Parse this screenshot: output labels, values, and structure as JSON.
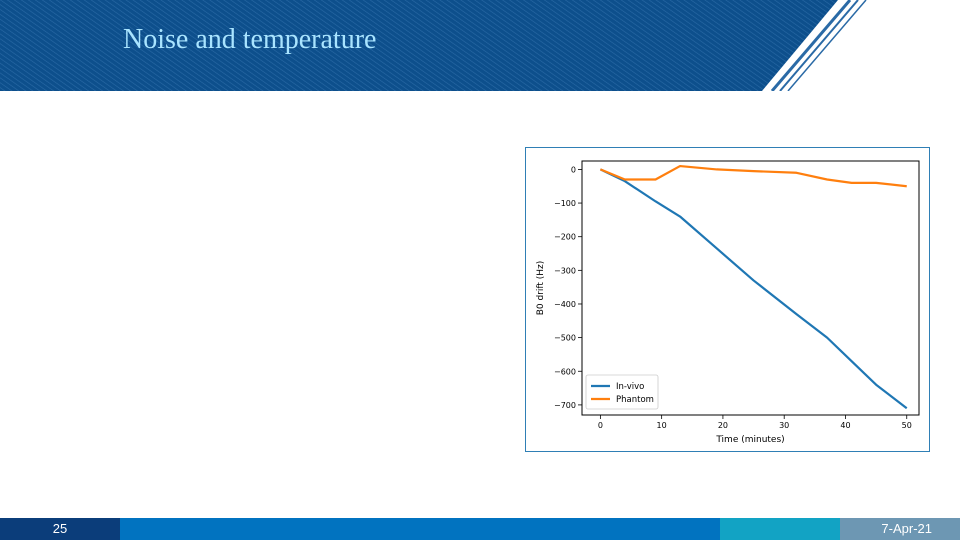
{
  "slide": {
    "title": "Noise and temperature",
    "page_number": "25",
    "date": "7-Apr-21"
  },
  "colors": {
    "header": "#0d4f8c",
    "title_text": "#a9e4ff",
    "footer_dark": "#0b3d7a",
    "footer_mid": "#0173c0",
    "footer_teal": "#12a3c4",
    "footer_gray": "#6d97b3"
  },
  "chart_data": {
    "type": "line",
    "title": "",
    "xlabel": "Time (minutes)",
    "ylabel": "B0 drift (Hz)",
    "xlim": [
      -3,
      52
    ],
    "ylim": [
      -730,
      25
    ],
    "xticks": [
      0,
      10,
      20,
      30,
      40,
      50
    ],
    "yticks": [
      0,
      -100,
      -200,
      -300,
      -400,
      -500,
      -600,
      -700
    ],
    "ytick_labels": [
      "0",
      "−100",
      "−200",
      "−300",
      "−400",
      "−500",
      "−600",
      "−700"
    ],
    "grid": false,
    "legend_position": "lower-left",
    "series": [
      {
        "name": "In-vivo",
        "color": "#1f77b4",
        "x": [
          0,
          4,
          9,
          13,
          19,
          25,
          32,
          37,
          41,
          45,
          50
        ],
        "y": [
          0,
          -35,
          -95,
          -140,
          -235,
          -330,
          -430,
          -500,
          -570,
          -640,
          -710
        ]
      },
      {
        "name": "Phantom",
        "color": "#ff7f0e",
        "x": [
          0,
          4,
          9,
          13,
          19,
          25,
          32,
          37,
          41,
          45,
          50
        ],
        "y": [
          0,
          -30,
          -30,
          10,
          0,
          -5,
          -10,
          -30,
          -40,
          -40,
          -50
        ]
      }
    ]
  }
}
